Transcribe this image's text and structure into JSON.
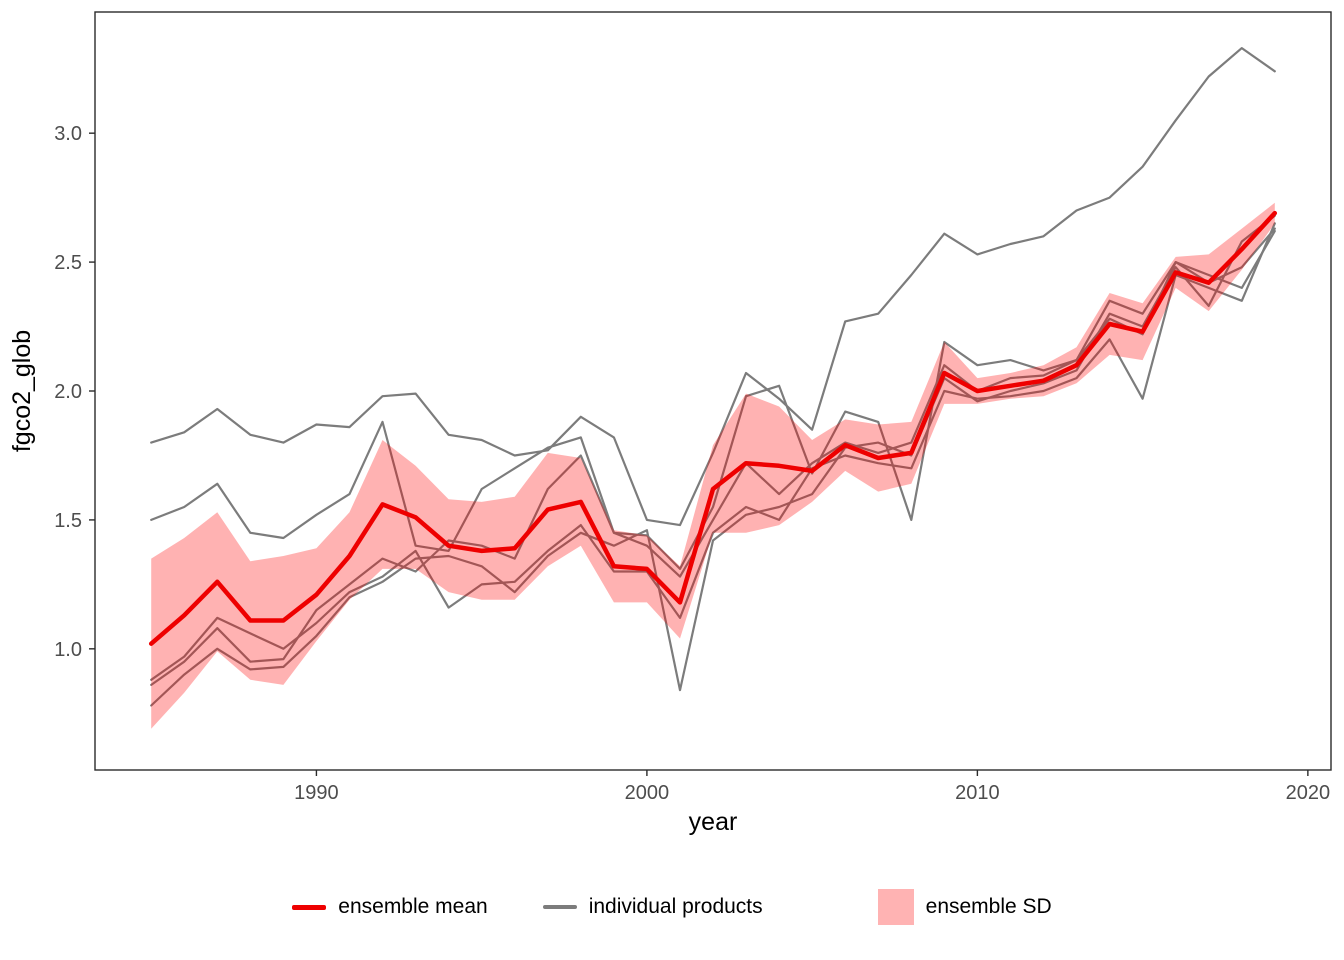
{
  "legend": {
    "items": [
      {
        "label": "ensemble mean",
        "type": "line",
        "color": "#ee0000"
      },
      {
        "label": "individual products",
        "type": "line",
        "color": "#7c7c7c"
      },
      {
        "label": "ensemble SD",
        "type": "fill",
        "color": "#ffb3b3"
      }
    ]
  },
  "chart_data": {
    "type": "line",
    "title": "",
    "xlabel": "year",
    "ylabel": "fgco2_glob",
    "xlim": [
      1983.3,
      2020.7
    ],
    "ylim": [
      0.53,
      3.47
    ],
    "grid": false,
    "legend_position": "bottom",
    "x_ticks": [
      {
        "value": 1990,
        "label": "1990"
      },
      {
        "value": 2000,
        "label": "2000"
      },
      {
        "value": 2010,
        "label": "2010"
      },
      {
        "value": 2020,
        "label": "2020"
      }
    ],
    "y_ticks": [
      {
        "value": 1.0,
        "label": "1.0"
      },
      {
        "value": 1.5,
        "label": "1.5"
      },
      {
        "value": 2.0,
        "label": "2.0"
      },
      {
        "value": 2.5,
        "label": "2.5"
      },
      {
        "value": 3.0,
        "label": "3.0"
      }
    ],
    "colors": {
      "mean": "#ee0000",
      "individual": "#7c7c7c",
      "sd_fill": "rgba(255,0,0,0.30)"
    },
    "years": [
      1985,
      1986,
      1987,
      1988,
      1989,
      1990,
      1991,
      1992,
      1993,
      1994,
      1995,
      1996,
      1997,
      1998,
      1999,
      2000,
      2001,
      2002,
      2003,
      2004,
      2005,
      2006,
      2007,
      2008,
      2009,
      2010,
      2011,
      2012,
      2013,
      2014,
      2015,
      2016,
      2017,
      2018,
      2019
    ],
    "series": [
      {
        "name": "ensemble mean",
        "role": "mean",
        "values": [
          1.02,
          1.13,
          1.26,
          1.11,
          1.11,
          1.21,
          1.36,
          1.56,
          1.51,
          1.4,
          1.38,
          1.39,
          1.54,
          1.57,
          1.32,
          1.31,
          1.18,
          1.62,
          1.72,
          1.71,
          1.69,
          1.79,
          1.74,
          1.76,
          2.07,
          2.0,
          2.02,
          2.04,
          2.1,
          2.26,
          2.23,
          2.46,
          2.42,
          2.55,
          2.69
        ]
      },
      {
        "name": "ensemble SD",
        "role": "sd",
        "values": [
          0.33,
          0.3,
          0.27,
          0.23,
          0.25,
          0.18,
          0.17,
          0.25,
          0.2,
          0.18,
          0.19,
          0.2,
          0.22,
          0.17,
          0.14,
          0.13,
          0.14,
          0.17,
          0.27,
          0.23,
          0.12,
          0.1,
          0.13,
          0.12,
          0.12,
          0.05,
          0.05,
          0.06,
          0.07,
          0.12,
          0.11,
          0.06,
          0.11,
          0.08,
          0.04
        ]
      },
      {
        "name": "individual product 1",
        "role": "individual",
        "values": [
          1.8,
          1.84,
          1.93,
          1.83,
          1.8,
          1.87,
          1.86,
          1.98,
          1.99,
          1.83,
          1.81,
          1.75,
          1.77,
          1.9,
          1.82,
          1.5,
          1.48,
          1.76,
          2.07,
          1.97,
          1.85,
          2.27,
          2.3,
          2.45,
          2.61,
          2.53,
          2.57,
          2.6,
          2.7,
          2.75,
          2.87,
          3.05,
          3.22,
          3.33,
          3.24
        ]
      },
      {
        "name": "individual product 2",
        "role": "individual",
        "values": [
          1.5,
          1.55,
          1.64,
          1.45,
          1.43,
          1.52,
          1.6,
          1.88,
          1.4,
          1.38,
          1.62,
          1.7,
          1.78,
          1.82,
          1.45,
          1.44,
          1.31,
          1.55,
          1.98,
          2.02,
          1.68,
          1.92,
          1.88,
          1.5,
          2.19,
          2.1,
          2.12,
          2.08,
          2.12,
          2.35,
          2.3,
          2.5,
          2.42,
          2.48,
          2.63
        ]
      },
      {
        "name": "individual product 3",
        "role": "individual",
        "values": [
          0.88,
          0.97,
          1.12,
          1.06,
          1.0,
          1.1,
          1.22,
          1.28,
          1.38,
          1.16,
          1.25,
          1.26,
          1.38,
          1.48,
          1.3,
          1.3,
          1.12,
          1.45,
          1.55,
          1.5,
          1.7,
          1.75,
          1.72,
          1.7,
          2.0,
          1.97,
          1.98,
          2.0,
          2.05,
          2.2,
          1.97,
          2.45,
          2.4,
          2.35,
          2.65
        ]
      },
      {
        "name": "individual product 4",
        "role": "individual",
        "values": [
          0.78,
          0.9,
          1.0,
          0.92,
          0.93,
          1.05,
          1.2,
          1.26,
          1.35,
          1.36,
          1.32,
          1.22,
          1.36,
          1.45,
          1.4,
          1.46,
          0.84,
          1.42,
          1.52,
          1.55,
          1.6,
          1.78,
          1.8,
          1.75,
          2.05,
          1.96,
          2.0,
          2.03,
          2.08,
          2.3,
          2.25,
          2.48,
          2.33,
          2.58,
          2.68
        ]
      },
      {
        "name": "individual product 5",
        "role": "individual",
        "values": [
          0.86,
          0.95,
          1.08,
          0.95,
          0.96,
          1.15,
          1.25,
          1.35,
          1.3,
          1.42,
          1.4,
          1.35,
          1.62,
          1.75,
          1.45,
          1.4,
          1.28,
          1.5,
          1.72,
          1.6,
          1.72,
          1.8,
          1.76,
          1.8,
          2.1,
          2.0,
          2.05,
          2.06,
          2.12,
          2.28,
          2.22,
          2.5,
          2.45,
          2.4,
          2.62
        ]
      }
    ]
  }
}
